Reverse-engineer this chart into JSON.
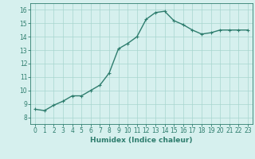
{
  "x": [
    0,
    1,
    2,
    3,
    4,
    5,
    6,
    7,
    8,
    9,
    10,
    11,
    12,
    13,
    14,
    15,
    16,
    17,
    18,
    19,
    20,
    21,
    22,
    23
  ],
  "y": [
    8.6,
    8.5,
    8.9,
    9.2,
    9.6,
    9.6,
    10.0,
    10.4,
    11.3,
    13.1,
    13.5,
    14.0,
    15.3,
    15.8,
    15.9,
    15.2,
    14.9,
    14.5,
    14.2,
    14.3,
    14.5,
    14.5,
    14.5,
    14.5
  ],
  "line_color": "#2e7d6e",
  "marker": "+",
  "markersize": 3,
  "linewidth": 1.0,
  "bg_color": "#d6f0ee",
  "grid_color": "#a8d5cf",
  "xlabel": "Humidex (Indice chaleur)",
  "xlabel_fontsize": 6.5,
  "tick_fontsize": 5.5,
  "ylim": [
    7.5,
    16.5
  ],
  "xlim": [
    -0.5,
    23.5
  ],
  "yticks": [
    8,
    9,
    10,
    11,
    12,
    13,
    14,
    15,
    16
  ],
  "xticks": [
    0,
    1,
    2,
    3,
    4,
    5,
    6,
    7,
    8,
    9,
    10,
    11,
    12,
    13,
    14,
    15,
    16,
    17,
    18,
    19,
    20,
    21,
    22,
    23
  ]
}
